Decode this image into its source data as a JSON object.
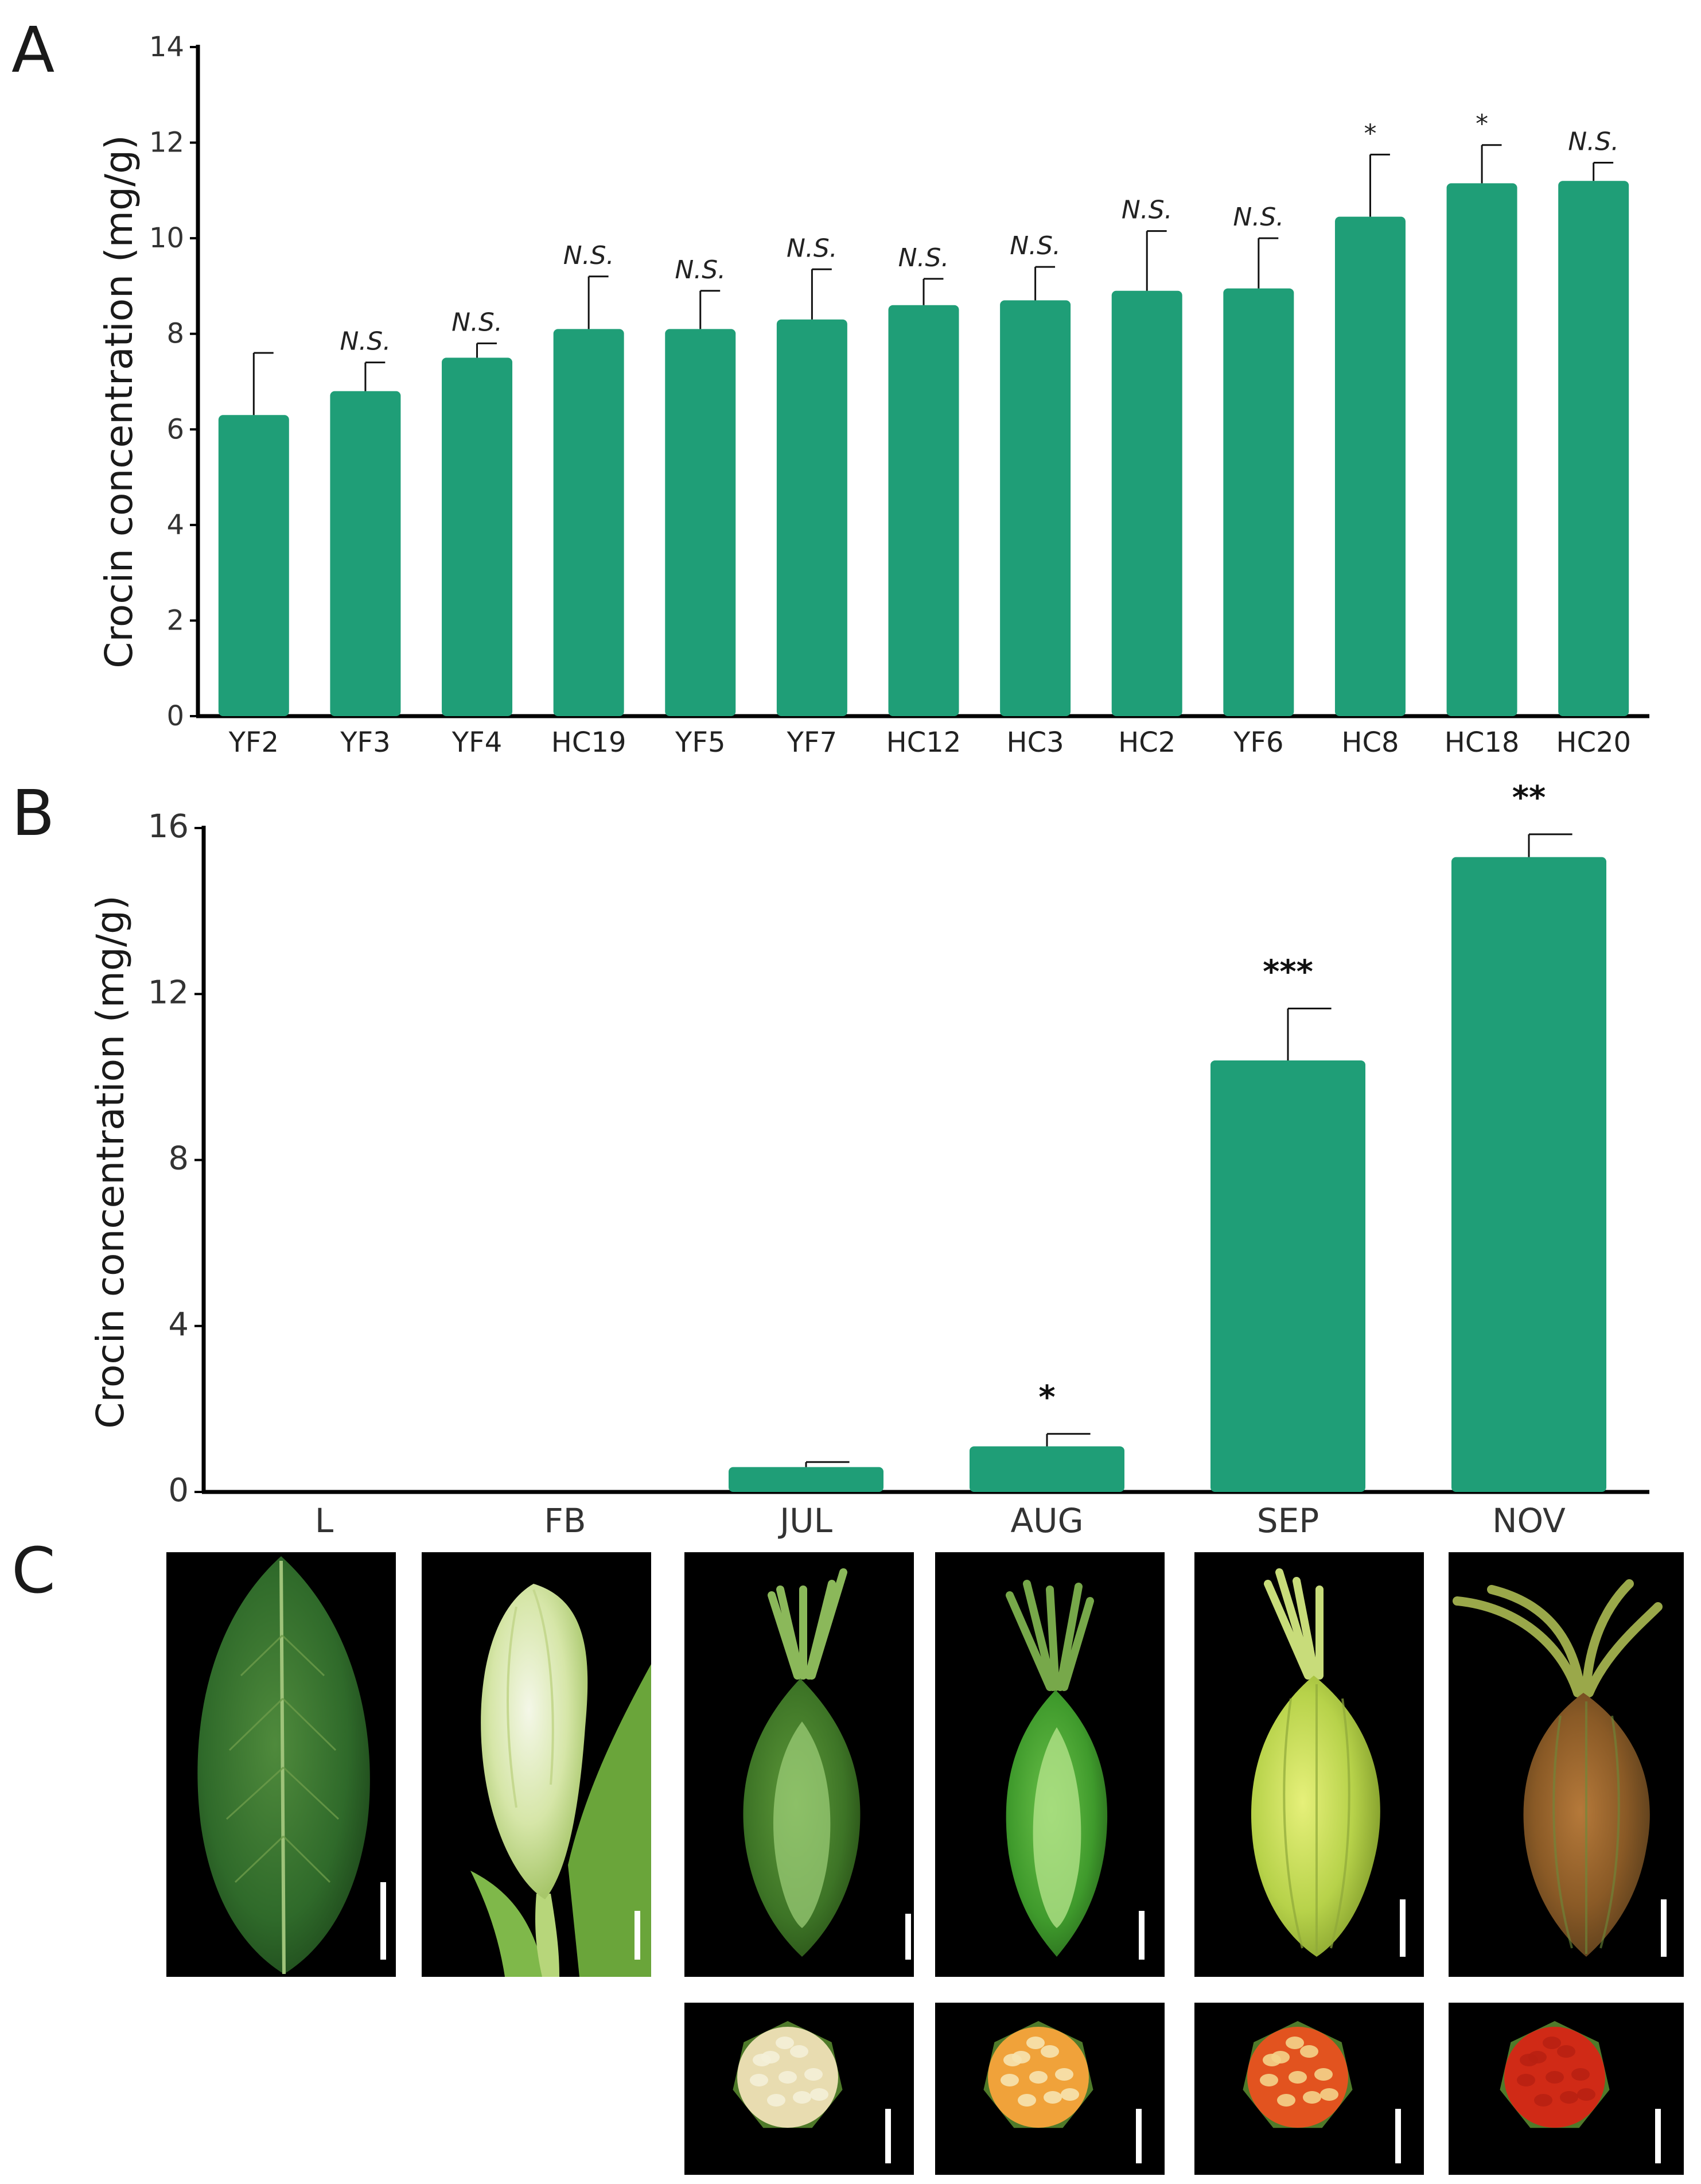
{
  "panels": {
    "a": "A",
    "b": "B",
    "c": "C"
  },
  "colors": {
    "bar": "#1f9e77"
  },
  "chart_data": [
    {
      "type": "bar",
      "panel": "A",
      "ylabel": "Crocin concentration (mg/g)",
      "ylim": [
        0,
        14
      ],
      "yticks": [
        0,
        2,
        4,
        6,
        8,
        10,
        12,
        14
      ],
      "categories": [
        "YF2",
        "YF3",
        "YF4",
        "HC19",
        "YF5",
        "YF7",
        "HC12",
        "HC3",
        "HC2",
        "YF6",
        "HC8",
        "HC18",
        "HC20"
      ],
      "values": [
        6.3,
        6.8,
        7.5,
        8.1,
        8.1,
        8.3,
        8.6,
        8.7,
        8.9,
        8.95,
        10.45,
        11.15,
        11.2
      ],
      "errors": [
        1.3,
        0.6,
        0.3,
        1.1,
        0.8,
        1.05,
        0.55,
        0.7,
        1.25,
        1.05,
        1.3,
        0.8,
        0.38
      ],
      "significance": [
        "",
        "N.S.",
        "N.S.",
        "N.S.",
        "N.S.",
        "N.S.",
        "N.S.",
        "N.S.",
        "N.S.",
        "N.S.",
        "*",
        "*",
        "N.S."
      ]
    },
    {
      "type": "bar",
      "panel": "B",
      "ylabel": "Crocin concentration (mg/g)",
      "ylim": [
        0,
        16
      ],
      "yticks": [
        0,
        4,
        8,
        12,
        16
      ],
      "categories": [
        "L",
        "FB",
        "JUL",
        "AUG",
        "SEP",
        "NOV"
      ],
      "values": [
        0,
        0,
        0.6,
        1.1,
        10.4,
        15.3
      ],
      "errors": [
        0,
        0,
        0.12,
        0.3,
        1.25,
        0.55
      ],
      "significance": [
        "",
        "",
        "",
        "*",
        "***",
        "**"
      ]
    }
  ],
  "photos": {
    "top": [
      {
        "label": "L",
        "kind": "leaf"
      },
      {
        "label": "FB",
        "kind": "flower-bud"
      },
      {
        "label": "JUL",
        "kind": "fruit-jul"
      },
      {
        "label": "AUG",
        "kind": "fruit-aug"
      },
      {
        "label": "SEP",
        "kind": "fruit-sep"
      },
      {
        "label": "NOV",
        "kind": "fruit-nov"
      }
    ],
    "cross_sections": [
      {
        "label": "JUL",
        "flesh": "#e8dcb0",
        "seeds": "#f4f0d8"
      },
      {
        "label": "AUG",
        "flesh": "#f0a23a",
        "seeds": "#f6e3b0"
      },
      {
        "label": "SEP",
        "flesh": "#e2531f",
        "seeds": "#f4d38a"
      },
      {
        "label": "NOV",
        "flesh": "#d02a16",
        "seeds": "#b82012"
      }
    ]
  }
}
